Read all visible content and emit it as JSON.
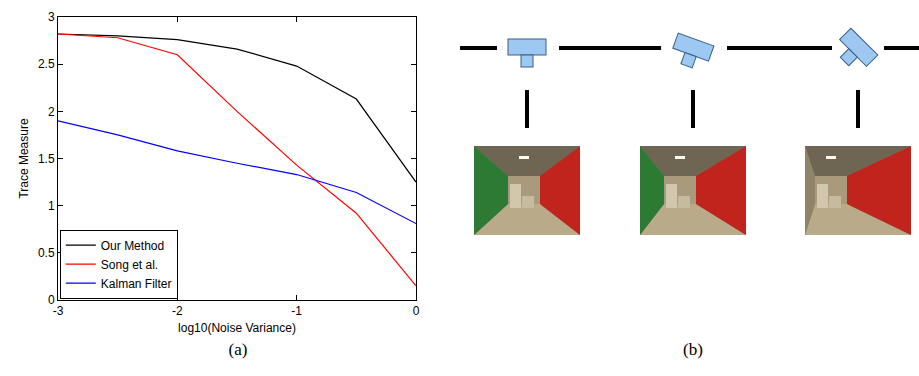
{
  "chart_data": {
    "type": "line",
    "x_label": "log10(Noise Variance)",
    "y_label": "Trace Measure",
    "x": [
      -3,
      -2.5,
      -2,
      -1.5,
      -1,
      -0.5,
      0
    ],
    "series": [
      {
        "name": "Our Method",
        "color": "#000000",
        "values": [
          2.82,
          2.8,
          2.76,
          2.66,
          2.48,
          2.13,
          1.25
        ]
      },
      {
        "name": "Song et al.",
        "color": "#ff0000",
        "values": [
          2.82,
          2.78,
          2.6,
          2.0,
          1.43,
          0.92,
          0.15
        ]
      },
      {
        "name": "Kalman Filter",
        "color": "#0000ff",
        "values": [
          1.9,
          1.75,
          1.58,
          1.45,
          1.33,
          1.14,
          0.81
        ]
      }
    ],
    "xlim": [
      -3,
      0
    ],
    "ylim": [
      0,
      3
    ],
    "xticks": [
      -3,
      -2,
      -1,
      0
    ],
    "yticks": [
      0,
      0.5,
      1,
      1.5,
      2,
      2.5,
      3
    ],
    "grid": false,
    "legend": "lower left"
  },
  "figure": {
    "panel_labels": [
      "(a)",
      "(b)"
    ]
  }
}
